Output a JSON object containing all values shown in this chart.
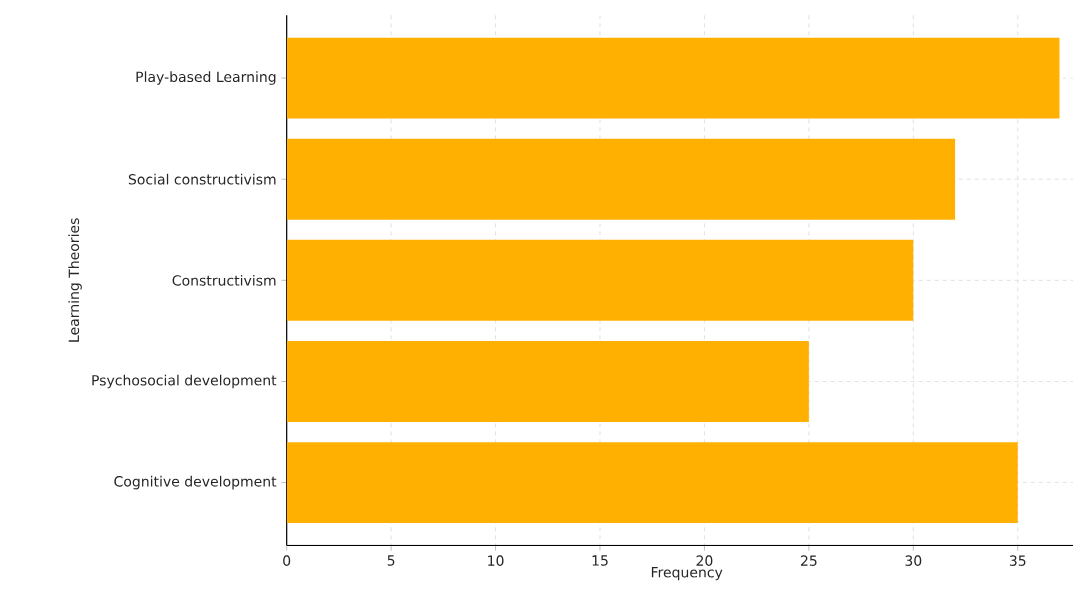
{
  "chart_data": {
    "type": "bar",
    "orientation": "horizontal",
    "xlabel": "Frequency",
    "ylabel": "Learning Theories",
    "categories": [
      "Play-based Learning",
      "Social constructivism",
      "Constructivism",
      "Psychosocial development",
      "Cognitive development"
    ],
    "values": [
      37,
      32,
      30,
      25,
      35
    ],
    "color": "#ffb000",
    "xlim": [
      0,
      38.3
    ],
    "xticks": [
      0,
      5,
      10,
      15,
      20,
      25,
      30,
      35
    ],
    "grid": true
  }
}
